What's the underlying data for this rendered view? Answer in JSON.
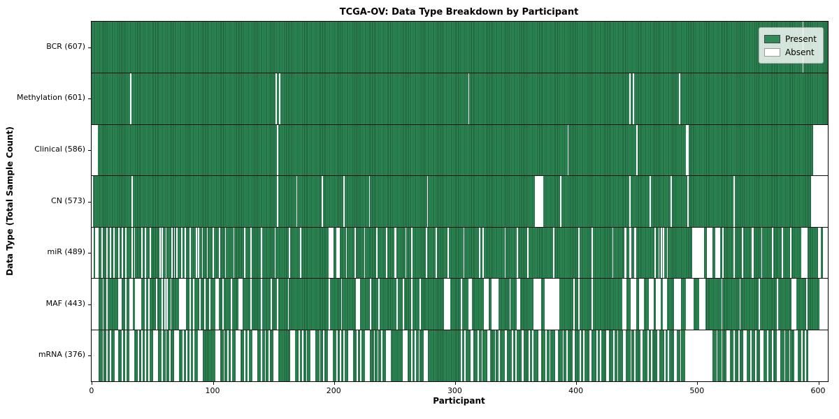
{
  "chart_data": {
    "type": "heatmap",
    "title": "TCGA-OV: Data Type Breakdown by Participant",
    "xlabel": "Participant",
    "ylabel": "Data Type (Total Sample Count)",
    "x_ticks": [
      0,
      100,
      200,
      300,
      400,
      500,
      600
    ],
    "xlim": [
      0,
      608
    ],
    "n_participants": 608,
    "grid": false,
    "legend": {
      "position": "upper right",
      "entries": [
        {
          "label": "Present",
          "color": "#2e8b57"
        },
        {
          "label": "Absent",
          "color": "#ffffff"
        }
      ]
    },
    "colors": {
      "present": "#2e8b57",
      "present_edge": "#1d5937",
      "absent": "#ffffff",
      "separator": "#101010"
    },
    "rows": [
      {
        "name": "BCR",
        "label": "BCR (607)",
        "present_count": 607,
        "absent_ranges": [
          [
            587,
            587
          ]
        ]
      },
      {
        "name": "Methylation",
        "label": "Methylation (601)",
        "present_count": 601,
        "absent_ranges": [
          [
            32,
            32
          ],
          [
            152,
            152
          ],
          [
            155,
            155
          ],
          [
            311,
            311
          ],
          [
            444,
            444
          ],
          [
            447,
            447
          ],
          [
            485,
            485
          ]
        ]
      },
      {
        "name": "Clinical",
        "label": "Clinical (586)",
        "present_count": 586,
        "absent_ranges": [
          [
            0,
            4
          ],
          [
            153,
            153
          ],
          [
            393,
            393
          ],
          [
            450,
            450
          ],
          [
            491,
            492
          ],
          [
            596,
            607
          ]
        ]
      },
      {
        "name": "CN",
        "label": "CN (573)",
        "present_count": 573,
        "absent_ranges": [
          [
            0,
            0
          ],
          [
            33,
            33
          ],
          [
            153,
            153
          ],
          [
            169,
            169
          ],
          [
            190,
            190
          ],
          [
            208,
            208
          ],
          [
            229,
            229
          ],
          [
            277,
            277
          ],
          [
            366,
            372
          ],
          [
            387,
            387
          ],
          [
            444,
            444
          ],
          [
            461,
            461
          ],
          [
            478,
            478
          ],
          [
            492,
            492
          ],
          [
            530,
            530
          ],
          [
            594,
            607
          ]
        ]
      },
      {
        "name": "miR",
        "label": "miR (489)",
        "present_count": 489,
        "absent_ranges": [
          [
            0,
            1
          ],
          [
            3,
            5
          ],
          [
            8,
            8
          ],
          [
            12,
            12
          ],
          [
            15,
            15
          ],
          [
            18,
            18
          ],
          [
            22,
            22
          ],
          [
            25,
            25
          ],
          [
            28,
            28
          ],
          [
            33,
            33
          ],
          [
            35,
            35
          ],
          [
            41,
            41
          ],
          [
            44,
            44
          ],
          [
            48,
            48
          ],
          [
            56,
            56
          ],
          [
            58,
            58
          ],
          [
            61,
            61
          ],
          [
            66,
            66
          ],
          [
            68,
            68
          ],
          [
            70,
            70
          ],
          [
            74,
            74
          ],
          [
            77,
            77
          ],
          [
            81,
            81
          ],
          [
            86,
            86
          ],
          [
            88,
            88
          ],
          [
            91,
            91
          ],
          [
            95,
            95
          ],
          [
            100,
            100
          ],
          [
            105,
            105
          ],
          [
            110,
            110
          ],
          [
            117,
            117
          ],
          [
            126,
            126
          ],
          [
            131,
            131
          ],
          [
            140,
            140
          ],
          [
            151,
            151
          ],
          [
            163,
            163
          ],
          [
            172,
            172
          ],
          [
            196,
            199
          ],
          [
            202,
            204
          ],
          [
            210,
            210
          ],
          [
            217,
            217
          ],
          [
            225,
            225
          ],
          [
            235,
            235
          ],
          [
            243,
            243
          ],
          [
            250,
            251
          ],
          [
            259,
            259
          ],
          [
            264,
            264
          ],
          [
            276,
            276
          ],
          [
            284,
            284
          ],
          [
            294,
            294
          ],
          [
            307,
            307
          ],
          [
            320,
            320
          ],
          [
            323,
            323
          ],
          [
            341,
            341
          ],
          [
            351,
            351
          ],
          [
            360,
            360
          ],
          [
            381,
            381
          ],
          [
            402,
            402
          ],
          [
            413,
            413
          ],
          [
            430,
            430
          ],
          [
            440,
            441
          ],
          [
            444,
            445
          ],
          [
            448,
            449
          ],
          [
            465,
            465
          ],
          [
            468,
            468
          ],
          [
            470,
            470
          ],
          [
            472,
            472
          ],
          [
            475,
            475
          ],
          [
            496,
            505
          ],
          [
            508,
            512
          ],
          [
            515,
            518
          ],
          [
            521,
            521
          ],
          [
            530,
            530
          ],
          [
            537,
            537
          ],
          [
            545,
            546
          ],
          [
            553,
            553
          ],
          [
            562,
            562
          ],
          [
            570,
            570
          ],
          [
            577,
            577
          ],
          [
            586,
            590
          ],
          [
            600,
            601
          ],
          [
            604,
            607
          ]
        ]
      },
      {
        "name": "MAF",
        "label": "MAF (443)",
        "present_count": 443,
        "absent_ranges": [
          [
            0,
            5
          ],
          [
            9,
            9
          ],
          [
            12,
            12
          ],
          [
            22,
            24
          ],
          [
            28,
            28
          ],
          [
            31,
            33
          ],
          [
            36,
            40
          ],
          [
            44,
            44
          ],
          [
            47,
            47
          ],
          [
            53,
            53
          ],
          [
            58,
            58
          ],
          [
            60,
            60
          ],
          [
            62,
            62
          ],
          [
            65,
            65
          ],
          [
            72,
            77
          ],
          [
            81,
            81
          ],
          [
            84,
            84
          ],
          [
            89,
            89
          ],
          [
            93,
            93
          ],
          [
            97,
            97
          ],
          [
            102,
            104
          ],
          [
            108,
            108
          ],
          [
            115,
            115
          ],
          [
            121,
            124
          ],
          [
            131,
            131
          ],
          [
            140,
            140
          ],
          [
            148,
            148
          ],
          [
            153,
            153
          ],
          [
            162,
            162
          ],
          [
            196,
            196
          ],
          [
            206,
            206
          ],
          [
            218,
            221
          ],
          [
            230,
            230
          ],
          [
            237,
            237
          ],
          [
            252,
            252
          ],
          [
            257,
            257
          ],
          [
            264,
            264
          ],
          [
            271,
            271
          ],
          [
            291,
            295
          ],
          [
            305,
            305
          ],
          [
            311,
            313
          ],
          [
            324,
            327
          ],
          [
            330,
            335
          ],
          [
            345,
            345
          ],
          [
            351,
            353
          ],
          [
            365,
            370
          ],
          [
            374,
            385
          ],
          [
            398,
            398
          ],
          [
            402,
            402
          ],
          [
            413,
            413
          ],
          [
            438,
            441
          ],
          [
            445,
            449
          ],
          [
            452,
            455
          ],
          [
            460,
            463
          ],
          [
            466,
            469
          ],
          [
            472,
            474
          ],
          [
            481,
            486
          ],
          [
            491,
            496
          ],
          [
            502,
            506
          ],
          [
            520,
            520
          ],
          [
            535,
            535
          ],
          [
            551,
            551
          ],
          [
            566,
            566
          ],
          [
            578,
            581
          ],
          [
            590,
            590
          ],
          [
            601,
            607
          ]
        ]
      },
      {
        "name": "mRNA",
        "label": "mRNA (376)",
        "present_count": 376,
        "absent_ranges": [
          [
            0,
            5
          ],
          [
            9,
            9
          ],
          [
            12,
            12
          ],
          [
            15,
            15
          ],
          [
            19,
            21
          ],
          [
            25,
            25
          ],
          [
            28,
            28
          ],
          [
            31,
            34
          ],
          [
            38,
            38
          ],
          [
            41,
            41
          ],
          [
            44,
            44
          ],
          [
            47,
            47
          ],
          [
            51,
            54
          ],
          [
            58,
            58
          ],
          [
            61,
            61
          ],
          [
            64,
            64
          ],
          [
            68,
            71
          ],
          [
            75,
            75
          ],
          [
            78,
            78
          ],
          [
            81,
            81
          ],
          [
            84,
            84
          ],
          [
            88,
            91
          ],
          [
            102,
            105
          ],
          [
            109,
            109
          ],
          [
            112,
            112
          ],
          [
            115,
            115
          ],
          [
            119,
            122
          ],
          [
            126,
            126
          ],
          [
            129,
            129
          ],
          [
            133,
            136
          ],
          [
            140,
            140
          ],
          [
            143,
            143
          ],
          [
            146,
            146
          ],
          [
            150,
            153
          ],
          [
            164,
            167
          ],
          [
            171,
            171
          ],
          [
            174,
            174
          ],
          [
            177,
            177
          ],
          [
            181,
            184
          ],
          [
            188,
            188
          ],
          [
            191,
            191
          ],
          [
            195,
            198
          ],
          [
            202,
            202
          ],
          [
            205,
            205
          ],
          [
            208,
            208
          ],
          [
            212,
            215
          ],
          [
            219,
            219
          ],
          [
            222,
            222
          ],
          [
            226,
            229
          ],
          [
            233,
            233
          ],
          [
            236,
            236
          ],
          [
            239,
            239
          ],
          [
            243,
            246
          ],
          [
            257,
            260
          ],
          [
            264,
            264
          ],
          [
            267,
            267
          ],
          [
            270,
            270
          ],
          [
            274,
            277
          ],
          [
            305,
            305
          ],
          [
            308,
            308
          ],
          [
            313,
            314
          ],
          [
            319,
            319
          ],
          [
            322,
            322
          ],
          [
            327,
            328
          ],
          [
            333,
            333
          ],
          [
            336,
            336
          ],
          [
            341,
            342
          ],
          [
            347,
            347
          ],
          [
            350,
            350
          ],
          [
            355,
            356
          ],
          [
            361,
            361
          ],
          [
            364,
            364
          ],
          [
            369,
            370
          ],
          [
            375,
            375
          ],
          [
            378,
            378
          ],
          [
            383,
            384
          ],
          [
            389,
            389
          ],
          [
            392,
            392
          ],
          [
            397,
            398
          ],
          [
            403,
            403
          ],
          [
            406,
            406
          ],
          [
            411,
            412
          ],
          [
            417,
            417
          ],
          [
            420,
            420
          ],
          [
            425,
            426
          ],
          [
            431,
            431
          ],
          [
            434,
            434
          ],
          [
            439,
            440
          ],
          [
            445,
            445
          ],
          [
            448,
            448
          ],
          [
            453,
            454
          ],
          [
            459,
            459
          ],
          [
            462,
            462
          ],
          [
            467,
            468
          ],
          [
            473,
            473
          ],
          [
            476,
            476
          ],
          [
            481,
            482
          ],
          [
            486,
            486
          ],
          [
            490,
            512
          ],
          [
            516,
            516
          ],
          [
            520,
            520
          ],
          [
            524,
            526
          ],
          [
            530,
            530
          ],
          [
            534,
            534
          ],
          [
            538,
            540
          ],
          [
            544,
            544
          ],
          [
            548,
            548
          ],
          [
            552,
            554
          ],
          [
            558,
            558
          ],
          [
            562,
            562
          ],
          [
            566,
            568
          ],
          [
            572,
            572
          ],
          [
            576,
            576
          ],
          [
            580,
            582
          ],
          [
            586,
            586
          ],
          [
            589,
            589
          ],
          [
            592,
            607
          ]
        ]
      }
    ]
  }
}
